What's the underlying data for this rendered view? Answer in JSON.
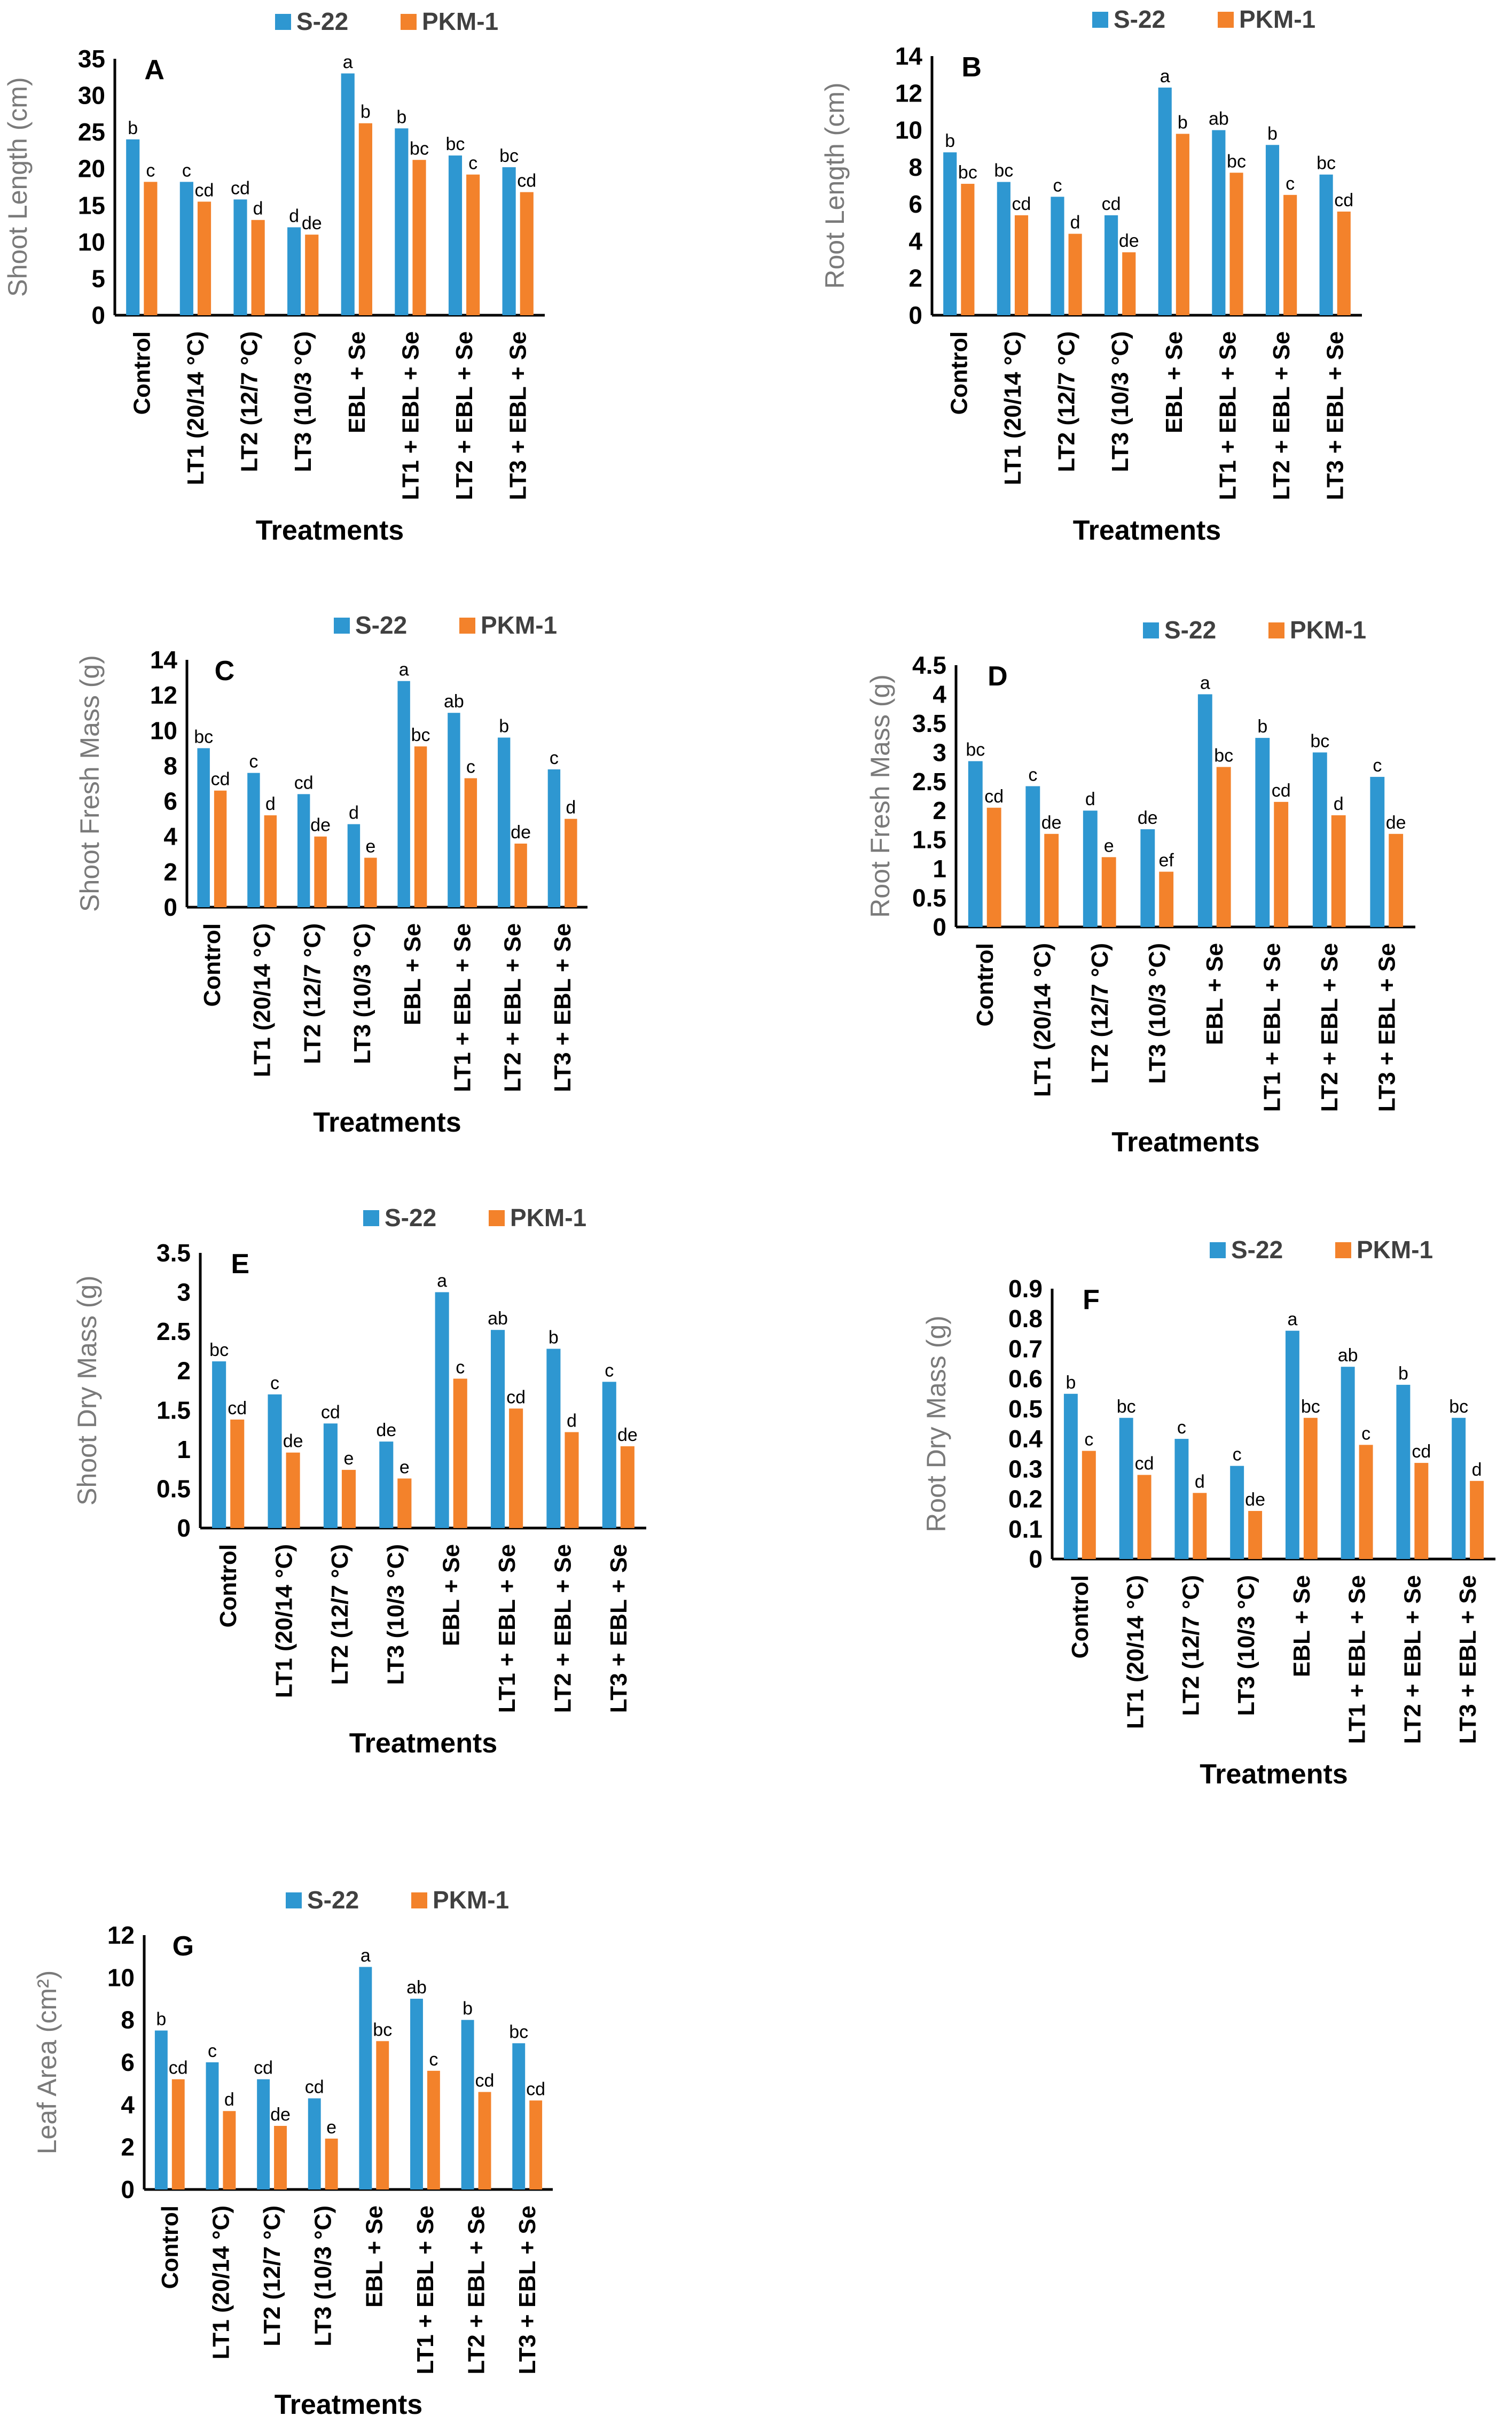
{
  "figure": {
    "legend": [
      "S-22",
      "PKM-1"
    ],
    "colors": {
      "S-22": "#2e97d1",
      "PKM-1": "#f3822b"
    }
  },
  "chart_data": [
    {
      "type": "bar",
      "panel": "A",
      "categories": [
        "Control",
        "LT1 (20/14 °C)",
        "LT2 (12/7 °C)",
        "LT3 (10/3 °C)",
        "EBL + Se",
        "LT1 + EBL + Se",
        "LT2 + EBL + Se",
        "LT3 + EBL + Se"
      ],
      "series": [
        {
          "name": "S-22",
          "values": [
            24,
            18.2,
            15.8,
            12,
            33,
            25.5,
            21.8,
            20.2
          ],
          "labels": [
            "b",
            "c",
            "cd",
            "d",
            "a",
            "b",
            "bc",
            "bc"
          ]
        },
        {
          "name": "PKM-1",
          "values": [
            18.2,
            15.5,
            13,
            11,
            26.2,
            21.2,
            19.2,
            16.8
          ],
          "labels": [
            "c",
            "cd",
            "d",
            "de",
            "b",
            "bc",
            "c",
            "cd"
          ]
        }
      ],
      "xlabel": "Treatments",
      "ylabel": "Shoot Length (cm)",
      "ylim": [
        0,
        35
      ],
      "yticks": [
        "0",
        "5",
        "10",
        "15",
        "20",
        "25",
        "30",
        "35"
      ]
    },
    {
      "type": "bar",
      "panel": "B",
      "categories": [
        "Control",
        "LT1 (20/14 °C)",
        "LT2 (12/7 °C)",
        "LT3 (10/3 °C)",
        "EBL + Se",
        "LT1 + EBL + Se",
        "LT2 + EBL + Se",
        "LT3 + EBL + Se"
      ],
      "series": [
        {
          "name": "S-22",
          "values": [
            8.8,
            7.2,
            6.4,
            5.4,
            12.3,
            10,
            9.2,
            7.6
          ],
          "labels": [
            "b",
            "bc",
            "c",
            "cd",
            "a",
            "ab",
            "b",
            "bc"
          ]
        },
        {
          "name": "PKM-1",
          "values": [
            7.1,
            5.4,
            4.4,
            3.4,
            9.8,
            7.7,
            6.5,
            5.6
          ],
          "labels": [
            "bc",
            "cd",
            "d",
            "de",
            "b",
            "bc",
            "c",
            "cd"
          ]
        }
      ],
      "xlabel": "Treatments",
      "ylabel": "Root Length (cm)",
      "ylim": [
        0,
        14
      ],
      "yticks": [
        "0",
        "2",
        "4",
        "6",
        "8",
        "10",
        "12",
        "14"
      ]
    },
    {
      "type": "bar",
      "panel": "C",
      "categories": [
        "Control",
        "LT1 (20/14 °C)",
        "LT2 (12/7 °C)",
        "LT3 (10/3 °C)",
        "EBL + Se",
        "LT1 + EBL + Se",
        "LT2 + EBL + Se",
        "LT3 + EBL + Se"
      ],
      "series": [
        {
          "name": "S-22",
          "values": [
            9,
            7.6,
            6.4,
            4.7,
            12.8,
            11,
            9.6,
            7.8
          ],
          "labels": [
            "bc",
            "c",
            "cd",
            "d",
            "a",
            "ab",
            "b",
            "c"
          ]
        },
        {
          "name": "PKM-1",
          "values": [
            6.6,
            5.2,
            4,
            2.8,
            9.1,
            7.3,
            3.6,
            5
          ],
          "labels": [
            "cd",
            "d",
            "de",
            "e",
            "bc",
            "c",
            "de",
            "d"
          ]
        }
      ],
      "xlabel": "Treatments",
      "ylabel": "Shoot Fresh Mass (g)",
      "ylim": [
        0,
        14
      ],
      "yticks": [
        "0",
        "2",
        "4",
        "6",
        "8",
        "10",
        "12",
        "14"
      ]
    },
    {
      "type": "bar",
      "panel": "D",
      "categories": [
        "Control",
        "LT1 (20/14 °C)",
        "LT2 (12/7 °C)",
        "LT3 (10/3 °C)",
        "EBL + Se",
        "LT1 + EBL + Se",
        "LT2 + EBL + Se",
        "LT3 + EBL + Se"
      ],
      "series": [
        {
          "name": "S-22",
          "values": [
            2.85,
            2.42,
            2,
            1.68,
            4,
            3.25,
            3,
            2.58
          ],
          "labels": [
            "bc",
            "c",
            "d",
            "de",
            "a",
            "b",
            "bc",
            "c"
          ]
        },
        {
          "name": "PKM-1",
          "values": [
            2.05,
            1.6,
            1.2,
            0.95,
            2.75,
            2.15,
            1.92,
            1.6
          ],
          "labels": [
            "cd",
            "de",
            "e",
            "ef",
            "bc",
            "cd",
            "d",
            "de"
          ]
        }
      ],
      "xlabel": "Treatments",
      "ylabel": "Root Fresh Mass (g)",
      "ylim": [
        0,
        4.5
      ],
      "yticks": [
        "0",
        "0.5",
        "1",
        "1.5",
        "2",
        "2.5",
        "3",
        "3.5",
        "4",
        "4.5"
      ]
    },
    {
      "type": "bar",
      "panel": "E",
      "categories": [
        "Control",
        "LT1 (20/14 °C)",
        "LT2 (12/7 °C)",
        "LT3 (10/3 °C)",
        "EBL + Se",
        "LT1 + EBL + Se",
        "LT2 + EBL + Se",
        "LT3 + EBL + Se"
      ],
      "series": [
        {
          "name": "S-22",
          "values": [
            2.12,
            1.7,
            1.33,
            1.1,
            3,
            2.52,
            2.28,
            1.86
          ],
          "labels": [
            "bc",
            "c",
            "cd",
            "de",
            "a",
            "ab",
            "b",
            "c"
          ]
        },
        {
          "name": "PKM-1",
          "values": [
            1.38,
            0.96,
            0.74,
            0.63,
            1.9,
            1.52,
            1.22,
            1.04
          ],
          "labels": [
            "cd",
            "de",
            "e",
            "e",
            "c",
            "cd",
            "d",
            "de"
          ]
        }
      ],
      "xlabel": "Treatments",
      "ylabel": "Shoot Dry Mass (g)",
      "ylim": [
        0,
        3.5
      ],
      "yticks": [
        "0",
        "0.5",
        "1",
        "1.5",
        "2",
        "2.5",
        "3",
        "3.5"
      ]
    },
    {
      "type": "bar",
      "panel": "F",
      "categories": [
        "Control",
        "LT1 (20/14 °C)",
        "LT2 (12/7 °C)",
        "LT3 (10/3 °C)",
        "EBL + Se",
        "LT1 + EBL + Se",
        "LT2 + EBL + Se",
        "LT3 + EBL + Se"
      ],
      "series": [
        {
          "name": "S-22",
          "values": [
            0.55,
            0.47,
            0.4,
            0.31,
            0.76,
            0.64,
            0.58,
            0.47
          ],
          "labels": [
            "b",
            "bc",
            "c",
            "c",
            "a",
            "ab",
            "b",
            "bc"
          ]
        },
        {
          "name": "PKM-1",
          "values": [
            0.36,
            0.28,
            0.22,
            0.16,
            0.47,
            0.38,
            0.32,
            0.26
          ],
          "labels": [
            "c",
            "cd",
            "d",
            "de",
            "bc",
            "c",
            "cd",
            "d"
          ]
        }
      ],
      "xlabel": "Treatments",
      "ylabel": "Root Dry Mass (g)",
      "ylim": [
        0,
        0.9
      ],
      "yticks": [
        "0",
        "0.1",
        "0.2",
        "0.3",
        "0.4",
        "0.5",
        "0.6",
        "0.7",
        "0.8",
        "0.9"
      ]
    },
    {
      "type": "bar",
      "panel": "G",
      "categories": [
        "Control",
        "LT1 (20/14 °C)",
        "LT2 (12/7 °C)",
        "LT3 (10/3 °C)",
        "EBL + Se",
        "LT1 + EBL + Se",
        "LT2 + EBL + Se",
        "LT3 + EBL + Se"
      ],
      "series": [
        {
          "name": "S-22",
          "values": [
            7.5,
            6,
            5.2,
            4.3,
            10.5,
            9,
            8,
            6.9
          ],
          "labels": [
            "b",
            "c",
            "cd",
            "cd",
            "a",
            "ab",
            "b",
            "bc"
          ]
        },
        {
          "name": "PKM-1",
          "values": [
            5.2,
            3.7,
            3,
            2.4,
            7,
            5.6,
            4.6,
            4.2
          ],
          "labels": [
            "cd",
            "d",
            "de",
            "e",
            "bc",
            "c",
            "cd",
            "cd"
          ]
        }
      ],
      "xlabel": "Treatments",
      "ylabel": "Leaf Area (cm²)",
      "ylim": [
        0,
        12
      ],
      "yticks": [
        "0",
        "2",
        "4",
        "6",
        "8",
        "10",
        "12"
      ]
    }
  ]
}
